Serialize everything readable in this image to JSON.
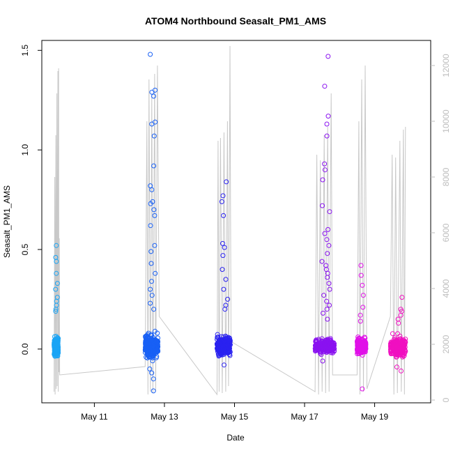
{
  "chart_data": {
    "type": "scatter",
    "title": "ATOM4 Northbound Seasalt_PM1_AMS",
    "xlabel": "Date",
    "ylabel": "Seasalt_PM1_AMS",
    "x_unit": "day of May (fractional)",
    "xlim": [
      9.5,
      20.6
    ],
    "ylim": [
      -0.27,
      1.55
    ],
    "y_ticks": [
      0.0,
      0.5,
      1.0,
      1.5
    ],
    "y_tick_labels": [
      "0.0",
      "0.5",
      "1.0",
      "1.5"
    ],
    "x_ticks": [
      11,
      13,
      15,
      17,
      19
    ],
    "x_tick_labels": [
      "May 11",
      "May 13",
      "May 15",
      "May 17",
      "May 19"
    ],
    "y2lim": [
      -100,
      12900
    ],
    "y2_ticks": [
      0,
      2000,
      4000,
      6000,
      8000,
      10000,
      12000
    ],
    "y2_tick_labels": [
      "0",
      "2000",
      "4000",
      "6000",
      "8000",
      "10000",
      "12000"
    ],
    "grid": false,
    "legend": "none",
    "colors": {
      "f1": "#1aa4f5",
      "f2": "#1860f5",
      "f3": "#2a22f0",
      "f4": "#8a12f0",
      "f5": "#e011e8",
      "f6": "#f010c0",
      "altitude_line": "#c8c8c8",
      "right_axis": "#bdbdbd"
    },
    "flights": [
      {
        "id": "f1",
        "start": 9.85,
        "end": 9.97,
        "core_min": -0.05,
        "core_max": 0.07,
        "outliers": [
          0.52,
          0.46,
          0.44,
          0.38,
          0.33,
          0.3,
          0.26,
          0.24,
          0.22,
          0.2,
          0.19
        ]
      },
      {
        "id": "f2",
        "start": 12.45,
        "end": 12.82,
        "core_min": -0.07,
        "core_max": 0.1,
        "outliers": [
          1.48,
          1.3,
          1.29,
          1.27,
          1.14,
          1.13,
          1.07,
          0.92,
          0.82,
          0.8,
          0.74,
          0.73,
          0.7,
          0.67,
          0.62,
          0.52,
          0.49,
          0.43,
          0.38,
          0.34,
          0.3,
          0.27,
          0.23,
          0.2,
          -0.1,
          -0.12,
          -0.15,
          -0.21
        ]
      },
      {
        "id": "f3",
        "start": 14.5,
        "end": 14.88,
        "core_min": -0.05,
        "core_max": 0.08,
        "outliers": [
          0.84,
          0.77,
          0.74,
          0.67,
          0.53,
          0.51,
          0.47,
          0.4,
          0.35,
          0.3,
          0.25,
          0.22,
          0.2,
          -0.08
        ]
      },
      {
        "id": "f4",
        "start": 17.3,
        "end": 17.85,
        "core_min": -0.03,
        "core_max": 0.06,
        "outliers": [
          1.47,
          1.32,
          1.17,
          1.13,
          1.07,
          0.93,
          0.9,
          0.85,
          0.72,
          0.69,
          0.6,
          0.58,
          0.55,
          0.52,
          0.48,
          0.44,
          0.42,
          0.4,
          0.38,
          0.36,
          0.33,
          0.3,
          0.27,
          0.24,
          0.22,
          0.2,
          0.18,
          0.15,
          -0.06
        ]
      },
      {
        "id": "f5",
        "start": 18.5,
        "end": 18.75,
        "core_min": -0.04,
        "core_max": 0.07,
        "outliers": [
          0.42,
          0.37,
          0.32,
          0.27,
          0.21,
          0.17,
          0.14,
          -0.2
        ]
      },
      {
        "id": "f6",
        "start": 19.45,
        "end": 19.88,
        "core_min": -0.06,
        "core_max": 0.08,
        "outliers": [
          0.26,
          0.2,
          0.19,
          0.17,
          0.15,
          0.13,
          -0.09,
          -0.11
        ]
      }
    ],
    "altitude_path": [
      [
        9.85,
        300
      ],
      [
        9.87,
        8000
      ],
      [
        9.88,
        200
      ],
      [
        9.9,
        9500
      ],
      [
        9.91,
        400
      ],
      [
        9.93,
        11000
      ],
      [
        9.94,
        500
      ],
      [
        9.96,
        11800
      ],
      [
        9.97,
        300
      ],
      [
        9.98,
        11900
      ],
      [
        9.99,
        1000
      ],
      [
        10.0,
        5800
      ],
      [
        10.01,
        900
      ],
      [
        12.45,
        1200
      ],
      [
        12.5,
        10000
      ],
      [
        12.53,
        200
      ],
      [
        12.56,
        11500
      ],
      [
        12.6,
        300
      ],
      [
        12.64,
        11000
      ],
      [
        12.67,
        250
      ],
      [
        12.72,
        11700
      ],
      [
        12.75,
        300
      ],
      [
        12.8,
        12000
      ],
      [
        12.85,
        3000
      ],
      [
        14.5,
        200
      ],
      [
        14.53,
        9300
      ],
      [
        14.56,
        300
      ],
      [
        14.6,
        9400
      ],
      [
        14.65,
        250
      ],
      [
        14.7,
        9600
      ],
      [
        14.75,
        300
      ],
      [
        14.8,
        10000
      ],
      [
        14.83,
        500
      ],
      [
        14.87,
        12700
      ],
      [
        14.9,
        2100
      ],
      [
        17.3,
        300
      ],
      [
        17.35,
        8800
      ],
      [
        17.4,
        200
      ],
      [
        17.45,
        8600
      ],
      [
        17.5,
        300
      ],
      [
        17.56,
        9500
      ],
      [
        17.6,
        250
      ],
      [
        17.66,
        9800
      ],
      [
        17.7,
        300
      ],
      [
        17.76,
        11000
      ],
      [
        17.8,
        900
      ],
      [
        18.5,
        900
      ],
      [
        18.55,
        10000
      ],
      [
        18.58,
        200
      ],
      [
        18.63,
        11500
      ],
      [
        18.68,
        300
      ],
      [
        18.73,
        12000
      ],
      [
        18.78,
        400
      ],
      [
        19.45,
        3000
      ],
      [
        19.5,
        8800
      ],
      [
        19.55,
        200
      ],
      [
        19.6,
        8700
      ],
      [
        19.65,
        250
      ],
      [
        19.72,
        9300
      ],
      [
        19.76,
        300
      ],
      [
        19.82,
        9700
      ],
      [
        19.85,
        200
      ],
      [
        19.88,
        9800
      ]
    ]
  }
}
